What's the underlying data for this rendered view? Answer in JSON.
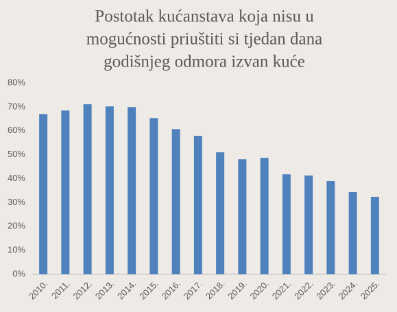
{
  "chart_data": {
    "type": "bar",
    "title": [
      "Postotak kućanstava koja nisu u",
      "mogućnosti priuštiti si tjedan dana",
      "godišnjeg odmora izvan kuće"
    ],
    "categories": [
      "2010.",
      "2011.",
      "2012.",
      "2013.",
      "2014.",
      "2015.",
      "2016.",
      "2017.",
      "2018.",
      "2019.",
      "2020.",
      "2021.",
      "2022.",
      "2023.",
      "2024.",
      "2025."
    ],
    "values": [
      67.0,
      68.5,
      71.1,
      70.2,
      69.9,
      65.3,
      60.7,
      57.9,
      51.0,
      48.1,
      48.7,
      41.8,
      41.3,
      39.0,
      34.4,
      32.4
    ],
    "color": "#4f81bd",
    "ylim": [
      0,
      80
    ],
    "yticks": [
      {
        "value": 0,
        "label": "0%"
      },
      {
        "value": 10,
        "label": "10%"
      },
      {
        "value": 20,
        "label": "20%"
      },
      {
        "value": 30,
        "label": "30%"
      },
      {
        "value": 40,
        "label": "40%"
      },
      {
        "value": 50,
        "label": "50%"
      },
      {
        "value": 60,
        "label": "60%"
      },
      {
        "value": 70,
        "label": "70%"
      },
      {
        "value": 80,
        "label": "80%"
      }
    ],
    "grid": false
  }
}
